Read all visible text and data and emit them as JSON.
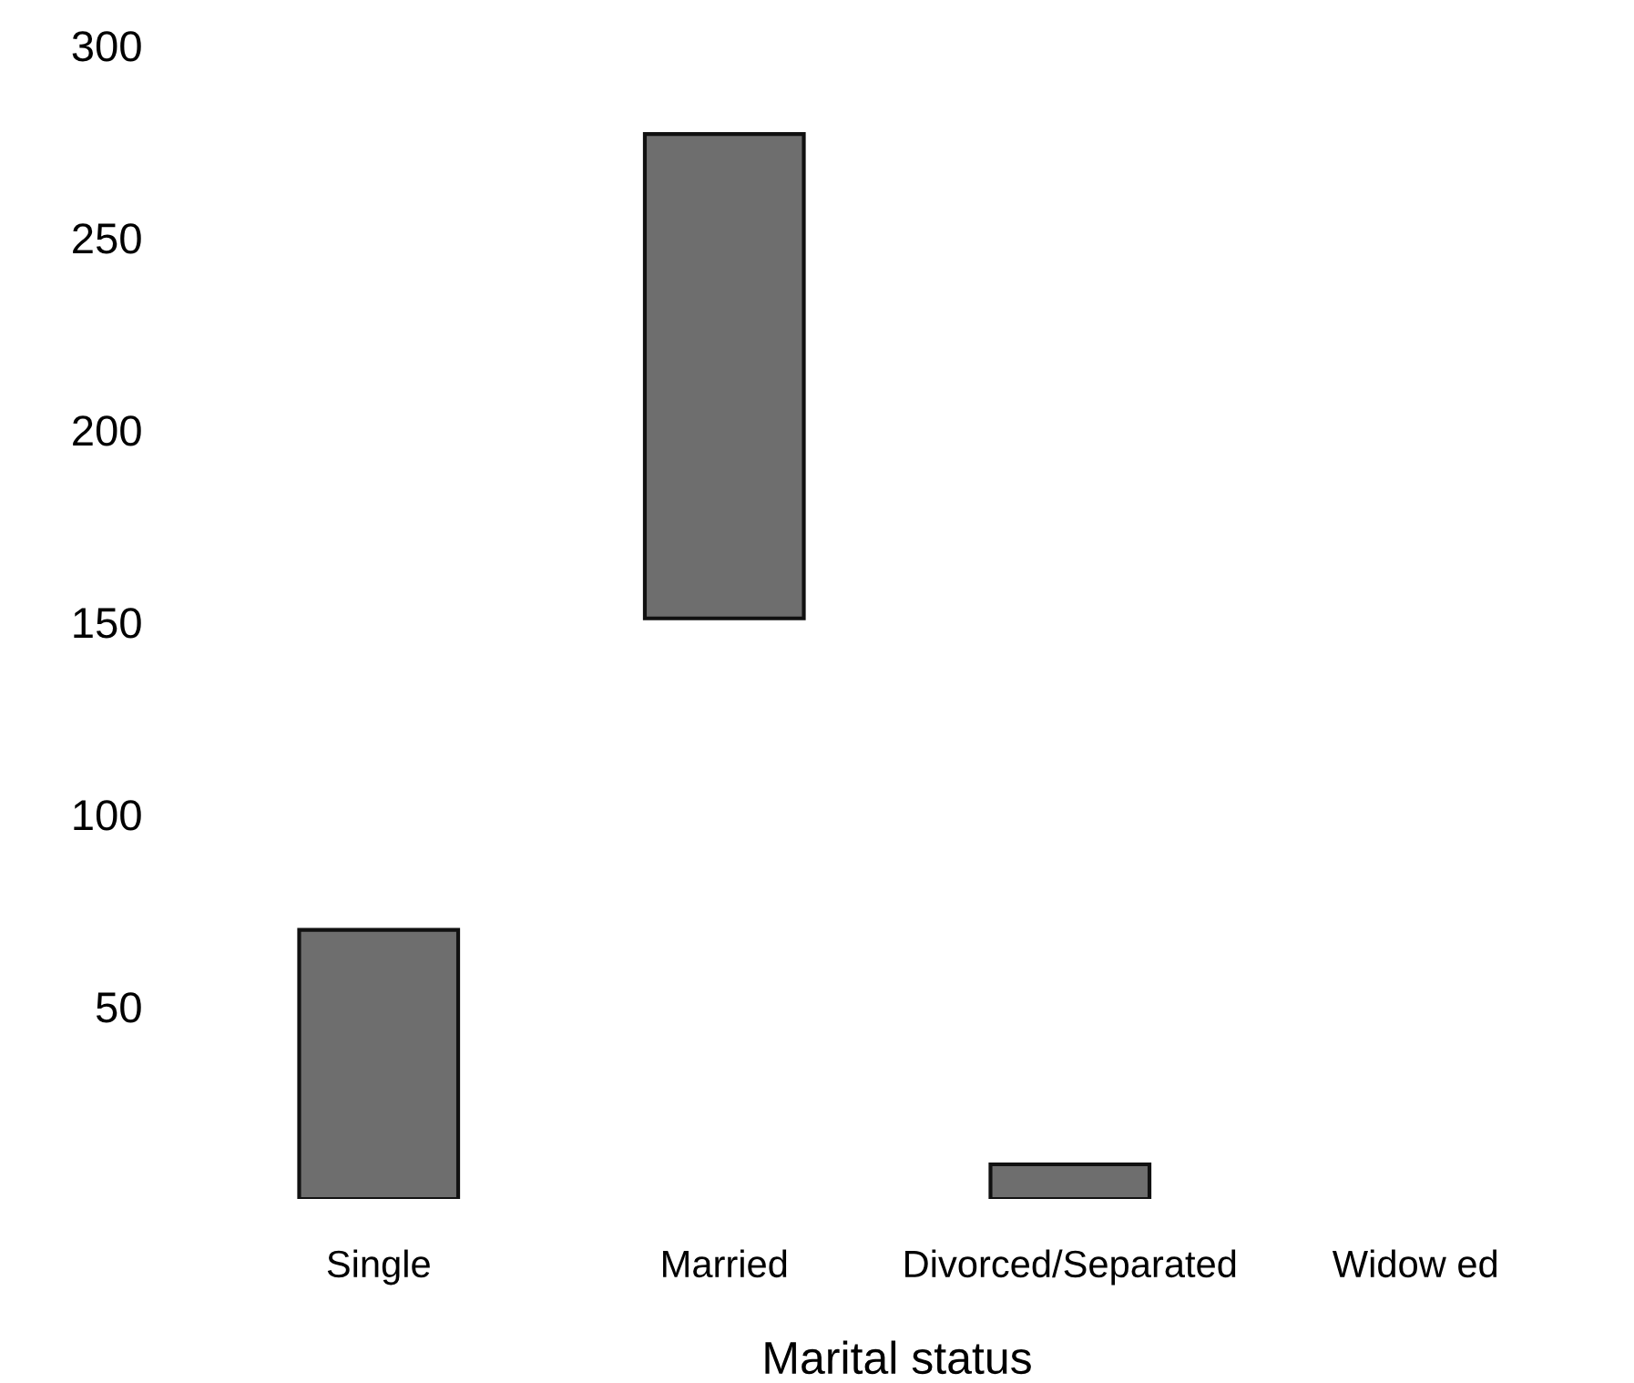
{
  "chart_data": {
    "type": "bar",
    "xlabel": "Marital status",
    "categories": [
      "Single",
      "Married",
      "Divorced/Separated",
      "Widow ed"
    ],
    "values": [
      70,
      126,
      9,
      null
    ],
    "base": [
      0,
      151,
      0,
      null
    ],
    "color": "#6e6e6e",
    "ylim": [
      0,
      300
    ],
    "yticks": [
      50,
      100,
      150,
      200,
      250,
      300
    ],
    "grid": false,
    "legend": false
  }
}
